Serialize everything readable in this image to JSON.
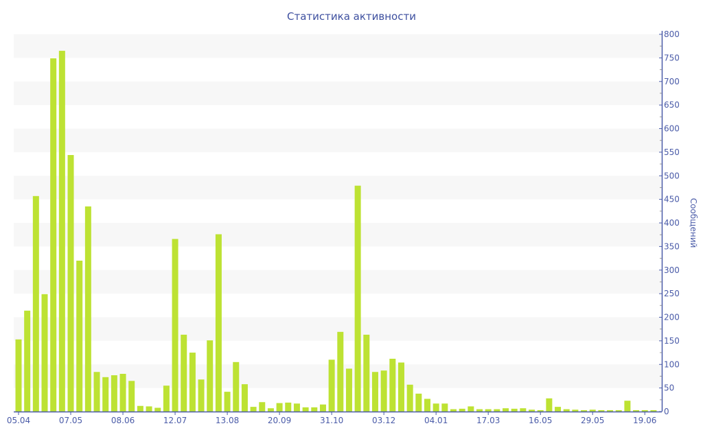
{
  "chart_data": {
    "type": "bar",
    "title": "Статистика активности",
    "ylabel": "Сообщений",
    "xlabel": "",
    "ylim": [
      0,
      800
    ],
    "y_major_step": 50,
    "y_axis_side": "right",
    "grid": "alternating horizontal bands",
    "xtick_labels": [
      "05.04",
      "07.05",
      "08.06",
      "12.07",
      "13.08",
      "20.09",
      "31.10",
      "03.12",
      "04.01",
      "17.03",
      "16.05",
      "29.05",
      "19.06"
    ],
    "xtick_every_n_bars": 6,
    "values": [
      153,
      214,
      457,
      249,
      749,
      765,
      544,
      320,
      435,
      84,
      73,
      77,
      80,
      65,
      12,
      11,
      8,
      55,
      366,
      163,
      125,
      68,
      151,
      376,
      42,
      105,
      58,
      10,
      20,
      7,
      18,
      19,
      17,
      9,
      9,
      15,
      110,
      169,
      91,
      479,
      163,
      84,
      87,
      112,
      104,
      57,
      38,
      27,
      17,
      17,
      5,
      6,
      11,
      5,
      5,
      5,
      7,
      6,
      7,
      4,
      3,
      28,
      10,
      5,
      4,
      3,
      4,
      3,
      3,
      3,
      23,
      3,
      3,
      3
    ],
    "colors": {
      "bar": "#bde233",
      "axis": "#4a5ba8",
      "band": "#f7f7f7"
    }
  }
}
